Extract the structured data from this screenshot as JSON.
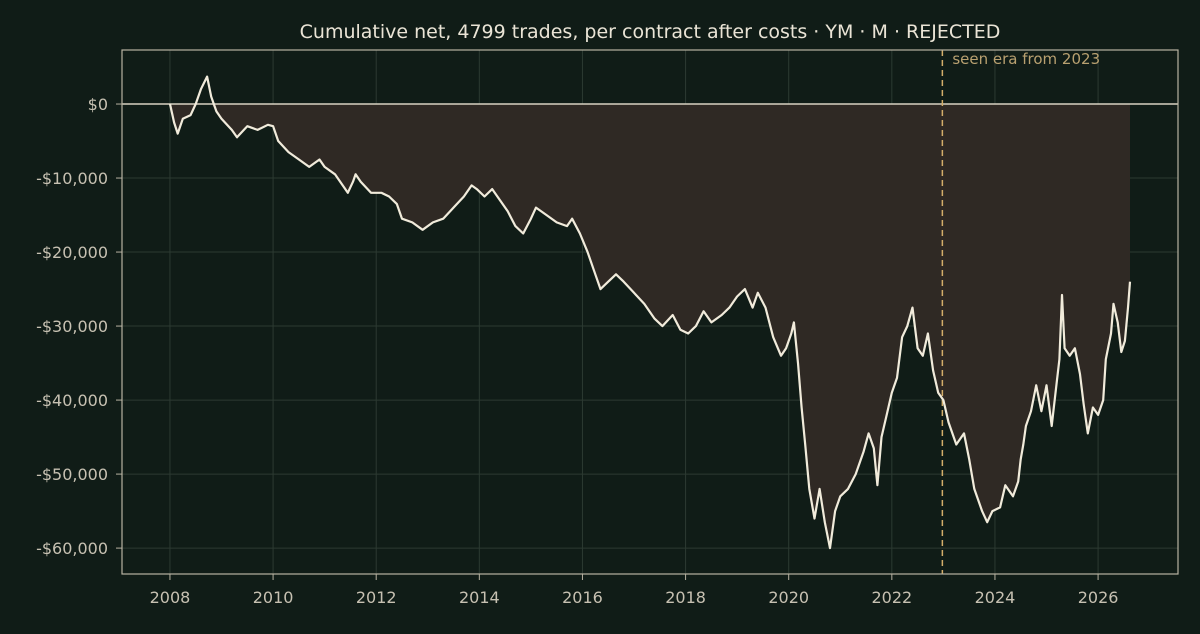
{
  "chart_data": {
    "type": "area",
    "title": "Cumulative net, 4799 trades, per contract after costs  ·  YM · M · REJECTED",
    "xlabel": "",
    "ylabel": "",
    "x_range": [
      2007.07,
      2027.55
    ],
    "ylim": [
      -63500,
      7300
    ],
    "grid": true,
    "x_ticks": [
      {
        "value": 2008,
        "label": "2008"
      },
      {
        "value": 2010,
        "label": "2010"
      },
      {
        "value": 2012,
        "label": "2012"
      },
      {
        "value": 2014,
        "label": "2014"
      },
      {
        "value": 2016,
        "label": "2016"
      },
      {
        "value": 2018,
        "label": "2018"
      },
      {
        "value": 2020,
        "label": "2020"
      },
      {
        "value": 2022,
        "label": "2022"
      },
      {
        "value": 2024,
        "label": "2024"
      },
      {
        "value": 2026,
        "label": "2026"
      }
    ],
    "y_ticks": [
      {
        "value": 0,
        "label": "$0"
      },
      {
        "value": -10000,
        "label": "-$10,000"
      },
      {
        "value": -20000,
        "label": "-$20,000"
      },
      {
        "value": -30000,
        "label": "-$30,000"
      },
      {
        "value": -40000,
        "label": "-$40,000"
      },
      {
        "value": -50000,
        "label": "-$50,000"
      },
      {
        "value": -60000,
        "label": "-$60,000"
      }
    ],
    "reference_line": {
      "y": 0
    },
    "annotation": {
      "x": 2022.98,
      "label": "seen era from 2023"
    },
    "series": [
      {
        "points": [
          [
            2008.0,
            0
          ],
          [
            2008.08,
            -2500
          ],
          [
            2008.15,
            -4000
          ],
          [
            2008.25,
            -2000
          ],
          [
            2008.4,
            -1500
          ],
          [
            2008.5,
            0
          ],
          [
            2008.6,
            2000
          ],
          [
            2008.72,
            3700
          ],
          [
            2008.8,
            1000
          ],
          [
            2008.9,
            -1000
          ],
          [
            2009.0,
            -2000
          ],
          [
            2009.2,
            -3500
          ],
          [
            2009.3,
            -4500
          ],
          [
            2009.5,
            -3000
          ],
          [
            2009.7,
            -3500
          ],
          [
            2009.9,
            -2800
          ],
          [
            2010.0,
            -3000
          ],
          [
            2010.1,
            -5000
          ],
          [
            2010.3,
            -6500
          ],
          [
            2010.5,
            -7500
          ],
          [
            2010.7,
            -8500
          ],
          [
            2010.9,
            -7500
          ],
          [
            2011.0,
            -8500
          ],
          [
            2011.2,
            -9500
          ],
          [
            2011.35,
            -11000
          ],
          [
            2011.45,
            -12000
          ],
          [
            2011.55,
            -10500
          ],
          [
            2011.6,
            -9500
          ],
          [
            2011.7,
            -10500
          ],
          [
            2011.9,
            -12000
          ],
          [
            2012.1,
            -12000
          ],
          [
            2012.25,
            -12500
          ],
          [
            2012.4,
            -13500
          ],
          [
            2012.5,
            -15500
          ],
          [
            2012.7,
            -16000
          ],
          [
            2012.9,
            -17000
          ],
          [
            2013.1,
            -16000
          ],
          [
            2013.3,
            -15500
          ],
          [
            2013.5,
            -14000
          ],
          [
            2013.7,
            -12500
          ],
          [
            2013.85,
            -11000
          ],
          [
            2013.95,
            -11500
          ],
          [
            2014.1,
            -12500
          ],
          [
            2014.25,
            -11500
          ],
          [
            2014.4,
            -13000
          ],
          [
            2014.55,
            -14500
          ],
          [
            2014.7,
            -16500
          ],
          [
            2014.85,
            -17500
          ],
          [
            2015.0,
            -15500
          ],
          [
            2015.1,
            -14000
          ],
          [
            2015.3,
            -15000
          ],
          [
            2015.5,
            -16000
          ],
          [
            2015.7,
            -16500
          ],
          [
            2015.8,
            -15500
          ],
          [
            2015.95,
            -17500
          ],
          [
            2016.1,
            -20000
          ],
          [
            2016.25,
            -23000
          ],
          [
            2016.35,
            -25000
          ],
          [
            2016.5,
            -24000
          ],
          [
            2016.65,
            -23000
          ],
          [
            2016.8,
            -24000
          ],
          [
            2017.0,
            -25500
          ],
          [
            2017.2,
            -27000
          ],
          [
            2017.4,
            -29000
          ],
          [
            2017.55,
            -30000
          ],
          [
            2017.75,
            -28500
          ],
          [
            2017.9,
            -30500
          ],
          [
            2018.05,
            -31000
          ],
          [
            2018.2,
            -30000
          ],
          [
            2018.35,
            -28000
          ],
          [
            2018.5,
            -29500
          ],
          [
            2018.7,
            -28500
          ],
          [
            2018.85,
            -27500
          ],
          [
            2019.0,
            -26000
          ],
          [
            2019.15,
            -25000
          ],
          [
            2019.3,
            -27500
          ],
          [
            2019.4,
            -25500
          ],
          [
            2019.55,
            -27500
          ],
          [
            2019.7,
            -31500
          ],
          [
            2019.85,
            -34000
          ],
          [
            2019.95,
            -33000
          ],
          [
            2020.05,
            -31000
          ],
          [
            2020.1,
            -29500
          ],
          [
            2020.18,
            -35000
          ],
          [
            2020.25,
            -41000
          ],
          [
            2020.32,
            -46000
          ],
          [
            2020.4,
            -52000
          ],
          [
            2020.5,
            -56000
          ],
          [
            2020.6,
            -52000
          ],
          [
            2020.7,
            -56500
          ],
          [
            2020.8,
            -60000
          ],
          [
            2020.9,
            -55000
          ],
          [
            2021.0,
            -53000
          ],
          [
            2021.15,
            -52000
          ],
          [
            2021.3,
            -50000
          ],
          [
            2021.45,
            -47000
          ],
          [
            2021.55,
            -44500
          ],
          [
            2021.65,
            -46500
          ],
          [
            2021.72,
            -51500
          ],
          [
            2021.8,
            -45000
          ],
          [
            2021.9,
            -42000
          ],
          [
            2022.0,
            -39000
          ],
          [
            2022.1,
            -37000
          ],
          [
            2022.2,
            -31500
          ],
          [
            2022.3,
            -30000
          ],
          [
            2022.4,
            -27500
          ],
          [
            2022.5,
            -33000
          ],
          [
            2022.6,
            -34000
          ],
          [
            2022.7,
            -31000
          ],
          [
            2022.8,
            -36000
          ],
          [
            2022.9,
            -39000
          ],
          [
            2023.0,
            -40000
          ],
          [
            2023.1,
            -43000
          ],
          [
            2023.25,
            -46000
          ],
          [
            2023.4,
            -44500
          ],
          [
            2023.5,
            -48000
          ],
          [
            2023.6,
            -52000
          ],
          [
            2023.75,
            -55000
          ],
          [
            2023.85,
            -56500
          ],
          [
            2023.95,
            -55000
          ],
          [
            2024.1,
            -54500
          ],
          [
            2024.2,
            -51500
          ],
          [
            2024.35,
            -53000
          ],
          [
            2024.45,
            -51000
          ],
          [
            2024.5,
            -48000
          ],
          [
            2024.55,
            -46000
          ],
          [
            2024.6,
            -43500
          ],
          [
            2024.7,
            -41500
          ],
          [
            2024.8,
            -38000
          ],
          [
            2024.9,
            -41500
          ],
          [
            2025.0,
            -38000
          ],
          [
            2025.1,
            -43500
          ],
          [
            2025.2,
            -37500
          ],
          [
            2025.25,
            -34500
          ],
          [
            2025.3,
            -25800
          ],
          [
            2025.35,
            -33000
          ],
          [
            2025.45,
            -34000
          ],
          [
            2025.55,
            -33000
          ],
          [
            2025.65,
            -36500
          ],
          [
            2025.72,
            -40500
          ],
          [
            2025.8,
            -44500
          ],
          [
            2025.9,
            -41000
          ],
          [
            2026.0,
            -42000
          ],
          [
            2026.1,
            -40000
          ],
          [
            2026.15,
            -34500
          ],
          [
            2026.25,
            -31000
          ],
          [
            2026.3,
            -27000
          ],
          [
            2026.38,
            -29500
          ],
          [
            2026.45,
            -33500
          ],
          [
            2026.52,
            -32000
          ],
          [
            2026.58,
            -27500
          ],
          [
            2026.62,
            -24000
          ]
        ]
      }
    ]
  }
}
